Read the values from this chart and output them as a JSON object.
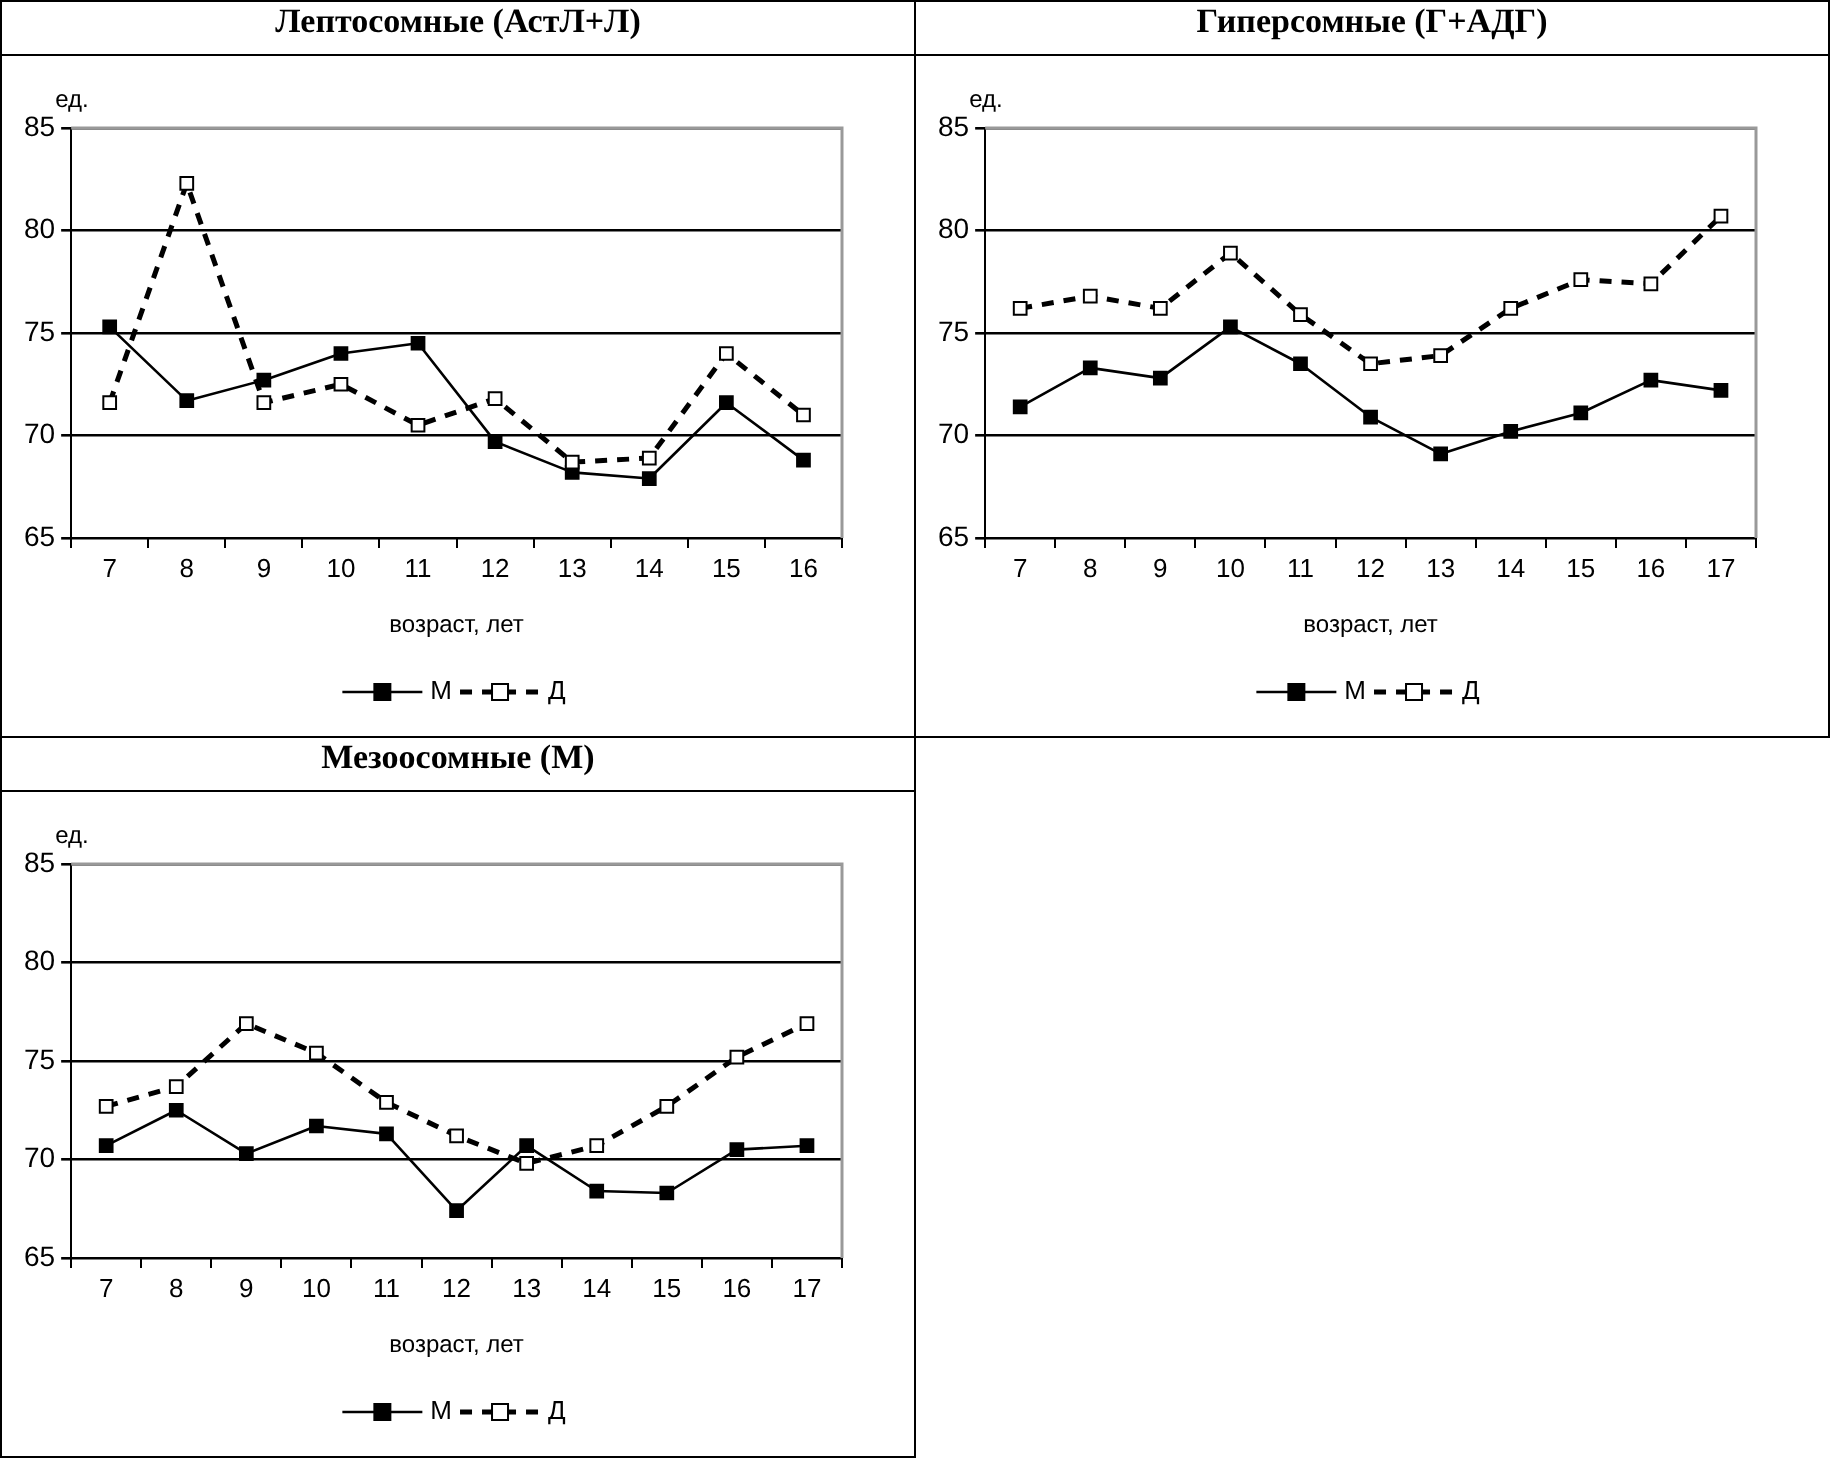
{
  "chart_data": [
    {
      "type": "line",
      "title": "Лептосомные (АстЛ+Л)",
      "xlabel": "возраст, лет",
      "ylabel": "ед.",
      "categories": [
        "7",
        "8",
        "9",
        "10",
        "11",
        "12",
        "13",
        "14",
        "15",
        "16"
      ],
      "ylim": [
        65,
        85
      ],
      "yticks": [
        65,
        70,
        75,
        80,
        85
      ],
      "grid": "y",
      "legend": "bottom",
      "marker": "square",
      "series": [
        {
          "name": "М",
          "color": "#000000",
          "line_style": "solid",
          "values": [
            75.3,
            71.7,
            72.7,
            74.0,
            74.5,
            69.7,
            68.2,
            67.9,
            71.6,
            68.8
          ]
        },
        {
          "name": "Д",
          "color": "#000000",
          "line_style": "dashed",
          "values": [
            71.6,
            82.3,
            71.6,
            72.5,
            70.5,
            71.8,
            68.7,
            68.9,
            74.0,
            71.0
          ]
        }
      ]
    },
    {
      "type": "line",
      "title": "Гиперсомные (Г+АДГ)",
      "xlabel": "возраст, лет",
      "ylabel": "ед.",
      "categories": [
        "7",
        "8",
        "9",
        "10",
        "11",
        "12",
        "13",
        "14",
        "15",
        "16",
        "17"
      ],
      "ylim": [
        65,
        85
      ],
      "yticks": [
        65,
        70,
        75,
        80,
        85
      ],
      "grid": "y",
      "legend": "bottom",
      "marker": "square",
      "series": [
        {
          "name": "М",
          "color": "#000000",
          "line_style": "solid",
          "values": [
            71.4,
            73.3,
            72.8,
            75.3,
            73.5,
            70.9,
            69.1,
            70.2,
            71.1,
            72.7,
            72.2
          ]
        },
        {
          "name": "Д",
          "color": "#000000",
          "line_style": "dashed",
          "values": [
            76.2,
            76.8,
            76.2,
            78.9,
            75.9,
            73.5,
            73.9,
            76.2,
            77.6,
            77.4,
            80.7
          ]
        }
      ]
    },
    {
      "type": "line",
      "title": "Мезоосомные (М)",
      "xlabel": "возраст, лет",
      "ylabel": "ед.",
      "categories": [
        "7",
        "8",
        "9",
        "10",
        "11",
        "12",
        "13",
        "14",
        "15",
        "16",
        "17"
      ],
      "ylim": [
        65,
        85
      ],
      "yticks": [
        65,
        70,
        75,
        80,
        85
      ],
      "grid": "y",
      "legend": "bottom",
      "marker": "square",
      "series": [
        {
          "name": "М",
          "color": "#000000",
          "line_style": "solid",
          "values": [
            70.7,
            72.5,
            70.3,
            71.7,
            71.3,
            67.4,
            70.7,
            68.4,
            68.3,
            70.5,
            70.7
          ]
        },
        {
          "name": "Д",
          "color": "#000000",
          "line_style": "dashed",
          "values": [
            72.7,
            73.7,
            76.9,
            75.4,
            72.9,
            71.2,
            69.8,
            70.7,
            72.7,
            75.2,
            76.9
          ]
        }
      ]
    }
  ]
}
